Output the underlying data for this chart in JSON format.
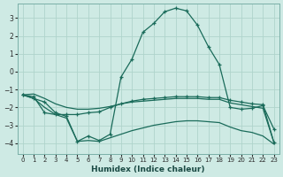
{
  "xlabel": "Humidex (Indice chaleur)",
  "xlim": [
    -0.5,
    23.5
  ],
  "ylim": [
    -4.6,
    3.8
  ],
  "xticks": [
    0,
    1,
    2,
    3,
    4,
    5,
    6,
    7,
    8,
    9,
    10,
    11,
    12,
    13,
    14,
    15,
    16,
    17,
    18,
    19,
    20,
    21,
    22,
    23
  ],
  "yticks": [
    -4,
    -3,
    -2,
    -1,
    0,
    1,
    2,
    3
  ],
  "bg_color": "#ceeae4",
  "line_color": "#1a6b5a",
  "grid_color": "#afd4cc",
  "line1_y": [
    -1.3,
    -1.5,
    -1.7,
    -2.3,
    -2.5,
    -3.9,
    -3.6,
    -3.85,
    -3.5,
    -0.3,
    0.7,
    2.2,
    2.7,
    3.35,
    3.55,
    3.4,
    2.6,
    1.4,
    0.4,
    -2.0,
    -2.1,
    -2.05,
    -1.9,
    -3.2
  ],
  "line2_y": [
    -1.3,
    -1.4,
    -2.3,
    -2.4,
    -2.4,
    -2.4,
    -2.3,
    -2.25,
    -2.0,
    -1.8,
    -1.65,
    -1.55,
    -1.5,
    -1.45,
    -1.4,
    -1.4,
    -1.4,
    -1.45,
    -1.45,
    -1.6,
    -1.7,
    -1.8,
    -1.85,
    -3.95
  ],
  "line3_y": [
    -1.3,
    -1.25,
    -1.5,
    -1.8,
    -2.0,
    -2.1,
    -2.1,
    -2.05,
    -1.95,
    -1.8,
    -1.7,
    -1.65,
    -1.6,
    -1.55,
    -1.5,
    -1.5,
    -1.5,
    -1.55,
    -1.55,
    -1.75,
    -1.85,
    -1.95,
    -2.05,
    -3.95
  ],
  "line4_y": [
    -1.3,
    -1.5,
    -2.0,
    -2.4,
    -2.6,
    -3.9,
    -3.85,
    -3.9,
    -3.7,
    -3.5,
    -3.3,
    -3.15,
    -3.0,
    -2.9,
    -2.8,
    -2.75,
    -2.75,
    -2.8,
    -2.85,
    -3.1,
    -3.3,
    -3.4,
    -3.6,
    -4.05
  ],
  "figsize": [
    3.2,
    2.0
  ],
  "dpi": 100
}
